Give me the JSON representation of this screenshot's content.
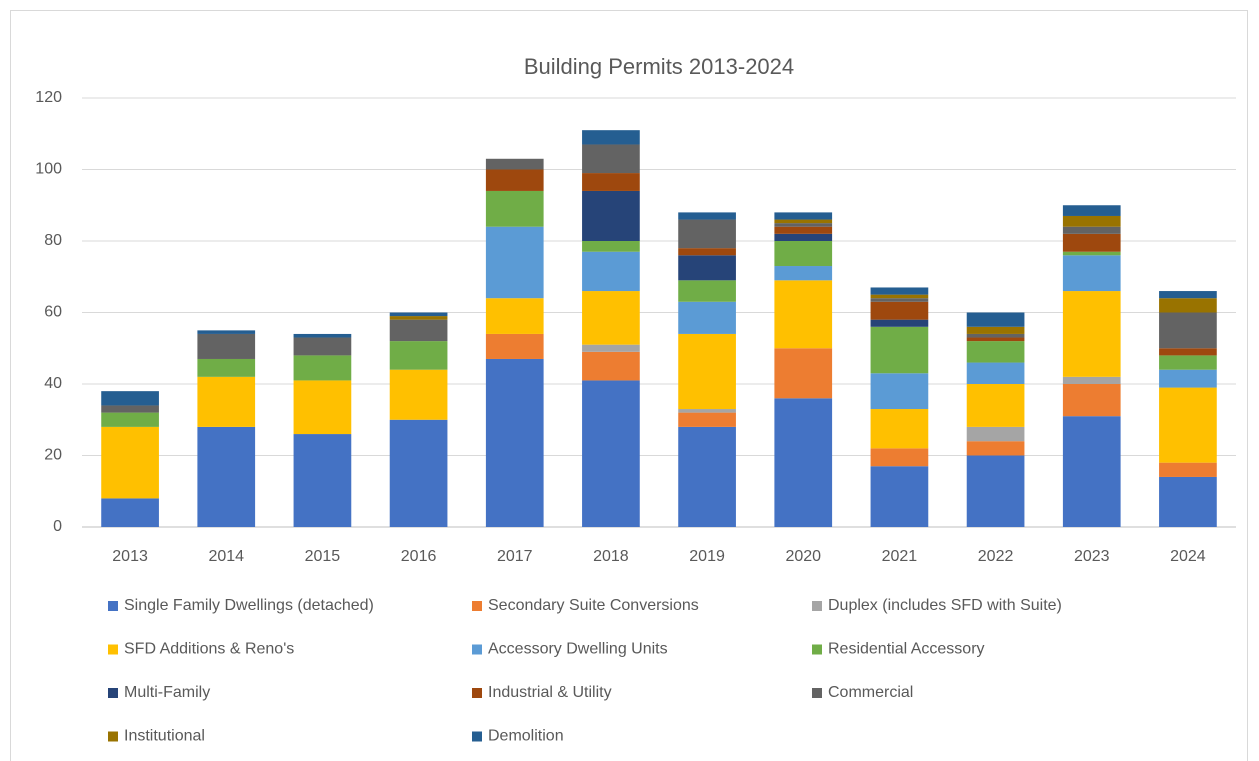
{
  "chart_data": {
    "type": "stacked_bar",
    "title": "Building Permits 2013-2024",
    "categories": [
      "2013",
      "2014",
      "2015",
      "2016",
      "2017",
      "2018",
      "2019",
      "2020",
      "2021",
      "2022",
      "2023",
      "2024"
    ],
    "series": [
      {
        "name": "Single Family Dwellings (detached)",
        "color": "#4472c4",
        "values": [
          8,
          28,
          26,
          30,
          47,
          41,
          28,
          36,
          17,
          20,
          31,
          14
        ]
      },
      {
        "name": "Secondary Suite Conversions",
        "color": "#ed7d31",
        "values": [
          0,
          0,
          0,
          0,
          7,
          8,
          4,
          14,
          5,
          4,
          9,
          4
        ]
      },
      {
        "name": "Duplex (includes SFD with Suite)",
        "color": "#a5a5a5",
        "values": [
          0,
          0,
          0,
          0,
          0,
          2,
          1,
          0,
          0,
          4,
          2,
          0
        ]
      },
      {
        "name": "SFD Additions & Reno's",
        "color": "#ffc000",
        "values": [
          20,
          14,
          15,
          14,
          10,
          15,
          21,
          19,
          11,
          12,
          24,
          21
        ]
      },
      {
        "name": "Accessory Dwelling Units",
        "color": "#5b9bd5",
        "values": [
          0,
          0,
          0,
          0,
          20,
          11,
          9,
          4,
          10,
          6,
          10,
          5
        ]
      },
      {
        "name": "Residential Accessory",
        "color": "#70ad47",
        "values": [
          4,
          5,
          7,
          8,
          10,
          3,
          6,
          7,
          13,
          6,
          1,
          4
        ]
      },
      {
        "name": "Multi-Family",
        "color": "#264478",
        "values": [
          0,
          0,
          0,
          0,
          0,
          14,
          7,
          2,
          2,
          0,
          0,
          0
        ]
      },
      {
        "name": "Industrial & Utility",
        "color": "#9e480e",
        "values": [
          0,
          0,
          0,
          0,
          6,
          5,
          2,
          2,
          5,
          1,
          5,
          2
        ]
      },
      {
        "name": "Commercial",
        "color": "#636363",
        "values": [
          2,
          7,
          5,
          6,
          3,
          8,
          8,
          1,
          1,
          1,
          2,
          10
        ]
      },
      {
        "name": "Institutional",
        "color": "#997300",
        "values": [
          0,
          0,
          0,
          1,
          0,
          0,
          0,
          1,
          1,
          2,
          3,
          4
        ]
      },
      {
        "name": "Demolition",
        "color": "#255e91",
        "values": [
          4,
          1,
          1,
          1,
          0,
          4,
          2,
          2,
          2,
          4,
          3,
          2
        ]
      }
    ],
    "ylim": [
      0,
      120
    ],
    "yticks": [
      0,
      20,
      40,
      60,
      80,
      100,
      120
    ],
    "grid": true,
    "legend": "bottom"
  }
}
